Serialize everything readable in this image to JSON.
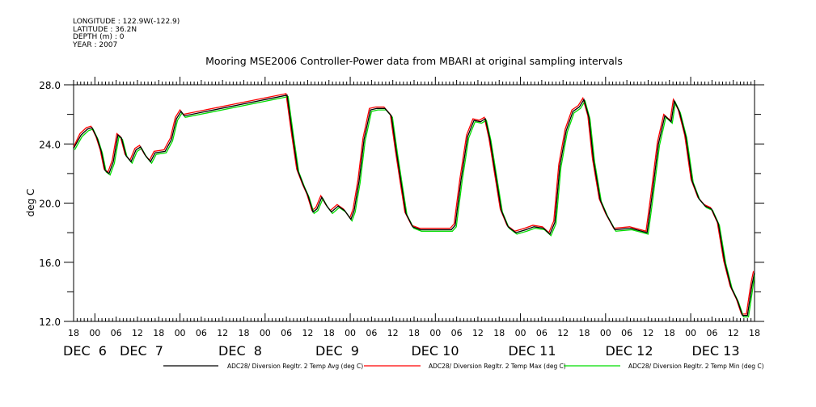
{
  "header": {
    "longitude": "LONGITUDE : 122.9W(-122.9)",
    "latitude": "LATITUDE : 36.2N",
    "depth": "DEPTH (m) : 0",
    "year": "YEAR : 2007"
  },
  "chart_data": {
    "type": "line",
    "title": "Mooring MSE2006 Controller-Power data from MBARI at original sampling intervals",
    "ylabel": "deg C",
    "xlabel": "",
    "ylim": [
      12.0,
      28.0
    ],
    "yticks": [
      "12.0",
      "16.0",
      "20.0",
      "24.0",
      "28.0"
    ],
    "xlim_hours": [
      0,
      192
    ],
    "x_hour_labels": [
      "18",
      "00",
      "06",
      "12",
      "18",
      "00",
      "06",
      "12",
      "18",
      "00",
      "06",
      "12",
      "18",
      "00",
      "06",
      "12",
      "18",
      "00",
      "06",
      "12",
      "18",
      "00",
      "06",
      "12",
      "18",
      "00",
      "06",
      "12",
      "18",
      "00",
      "06",
      "12",
      "18"
    ],
    "date_labels": [
      "DEC  6",
      "DEC  7",
      "DEC  8",
      "DEC  9",
      "DEC 10",
      "DEC 11",
      "DEC 12",
      "DEC 13"
    ],
    "grid": false,
    "legend_position": "bottom",
    "x_hours": [
      0,
      2.1,
      3.9,
      5.2,
      6.6,
      7.8,
      8.9,
      10.0,
      11.2,
      12.5,
      13.5,
      14.8,
      16.2,
      17.6,
      18.9,
      20.3,
      21.7,
      23.0,
      25.8,
      27.6,
      29.0,
      30.3,
      31.2,
      60.2,
      61.8,
      63.2,
      64.8,
      66.1,
      67.5,
      68.6,
      70.0,
      71.4,
      72.7,
      74.6,
      76.4,
      78.2,
      79.1,
      80.5,
      81.9,
      83.7,
      85.5,
      87.8,
      89.6,
      91.0,
      92.4,
      93.7,
      95.6,
      97.8,
      102.4,
      106.5,
      107.6,
      109.2,
      111.1,
      112.9,
      114.7,
      116.1,
      117.4,
      118.8,
      120.6,
      122.5,
      124.7,
      127.5,
      129.8,
      132.5,
      134.3,
      135.7,
      137.1,
      138.9,
      140.8,
      142.6,
      143.9,
      145.3,
      146.6,
      148.5,
      150.3,
      152.6,
      157.1,
      161.7,
      163.1,
      164.9,
      166.7,
      168.5,
      169.4,
      170.8,
      172.6,
      174.4,
      176.3,
      178.1,
      179.9,
      181.8,
      183.6,
      185.4,
      187.2,
      188.6,
      190.0,
      191.3,
      192
    ],
    "series": [
      {
        "name": "ADC28/ Diversion Regltr. 2 Temp Avg (deg C)",
        "color": "#000000",
        "x_shift_hours": 0,
        "y_offset": 0,
        "values": [
          23.7,
          24.6,
          25.0,
          25.1,
          24.4,
          23.5,
          22.2,
          22.0,
          22.8,
          24.6,
          24.4,
          23.2,
          22.8,
          23.6,
          23.8,
          23.2,
          22.8,
          23.4,
          23.5,
          24.3,
          25.7,
          26.2,
          25.9,
          27.3,
          24.5,
          22.2,
          21.2,
          20.5,
          19.4,
          19.6,
          20.4,
          19.8,
          19.4,
          19.8,
          19.5,
          18.9,
          19.5,
          21.5,
          24.3,
          26.3,
          26.4,
          26.4,
          25.9,
          23.5,
          21.3,
          19.3,
          18.4,
          18.2,
          18.2,
          18.2,
          18.5,
          21.5,
          24.5,
          25.6,
          25.5,
          25.7,
          24.3,
          22.2,
          19.5,
          18.4,
          18.0,
          18.2,
          18.4,
          18.3,
          17.9,
          18.7,
          22.5,
          24.9,
          26.2,
          26.5,
          27.0,
          25.8,
          22.9,
          20.2,
          19.2,
          18.2,
          18.3,
          18.0,
          20.5,
          24.0,
          25.9,
          25.5,
          26.9,
          26.2,
          24.5,
          21.5,
          20.3,
          19.8,
          19.6,
          18.6,
          16.0,
          14.3,
          13.4,
          12.4,
          12.4,
          14.5,
          15.3
        ]
      },
      {
        "name": "ADC28/ Diversion Regltr. 2 Temp Max (deg C)",
        "color": "#ff0000",
        "x_shift_hours": -0.3,
        "y_offset": 0.1
      },
      {
        "name": "ADC28/ Diversion Regltr. 2 Temp Min (deg C)",
        "color": "#00dd00",
        "x_shift_hours": 0.3,
        "y_offset": -0.1
      }
    ]
  }
}
